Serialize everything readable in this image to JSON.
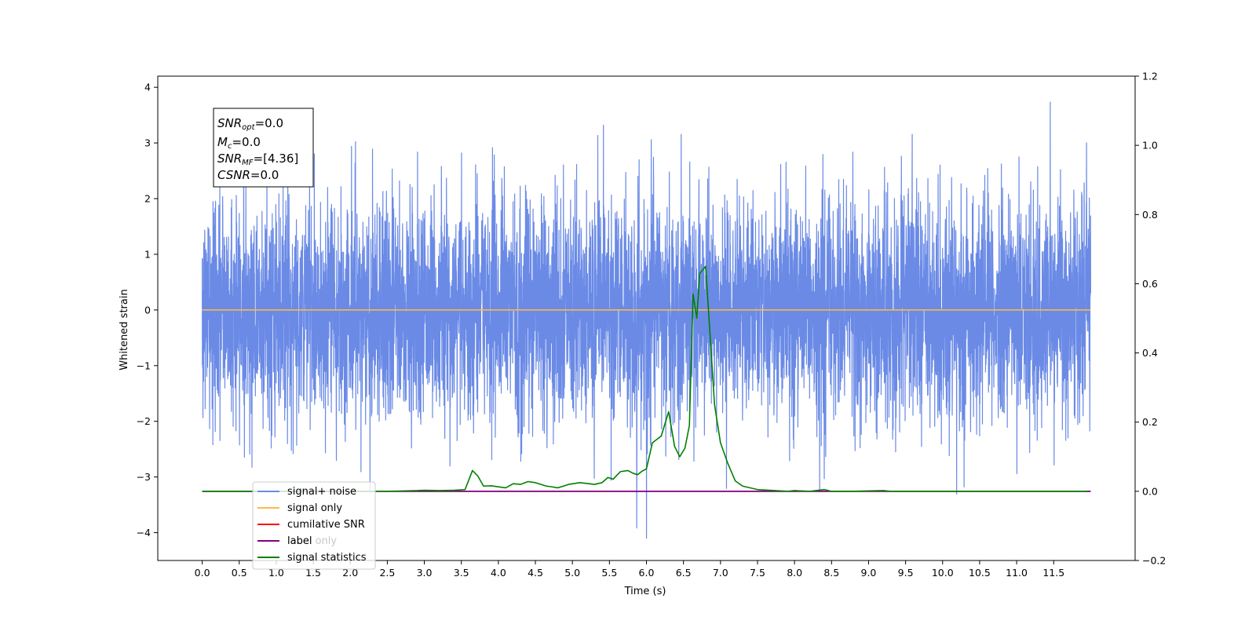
{
  "chart_data": {
    "type": "line",
    "xlabel": "Time (s)",
    "ylabel": "Whitened strain",
    "xlim": [
      -0.6,
      12.6
    ],
    "ylim_left": [
      -4.5,
      4.2
    ],
    "ylim_right": [
      -0.2,
      1.2
    ],
    "x_ticks": [
      "0.0",
      "0.5",
      "1.0",
      "1.5",
      "2.0",
      "2.5",
      "3.0",
      "3.5",
      "4.0",
      "4.5",
      "5.0",
      "5.5",
      "6.0",
      "6.5",
      "7.0",
      "7.5",
      "8.0",
      "8.5",
      "9.0",
      "9.5",
      "10.0",
      "10.5",
      "11.0",
      "11.5"
    ],
    "y_ticks_left": [
      "4",
      "3",
      "2",
      "1",
      "0",
      "−1",
      "−2",
      "−3",
      "−4"
    ],
    "y_ticks_right": [
      "1.2",
      "1.0",
      "0.8",
      "0.6",
      "0.4",
      "0.2",
      "0.0",
      "−0.2"
    ],
    "grid": false,
    "legend_placement": "lower-left",
    "info_box": {
      "lines": [
        {
          "main": "SNR",
          "sub": "opt",
          "rest": "=0.0"
        },
        {
          "main": "M",
          "sub": "c",
          "rest": "=0.0"
        },
        {
          "main": "SNR",
          "sub": "MF",
          "rest": "=[4.36]"
        },
        {
          "main": "CSNR",
          "sub": "",
          "rest": "=0.0"
        }
      ]
    },
    "series": [
      {
        "name": "signal+ noise",
        "color": "#6a8ae6",
        "axis": "left",
        "kind": "noise",
        "x_range": [
          0,
          12
        ],
        "amplitude_std": 1.0
      },
      {
        "name": "signal only",
        "color": "#ffb74d",
        "axis": "left",
        "x": [
          0,
          12
        ],
        "y": [
          0,
          0
        ]
      },
      {
        "name": "cumilative SNR",
        "color": "#ff0000",
        "axis": "right",
        "x": [
          0,
          12
        ],
        "y": [
          0,
          0
        ]
      },
      {
        "name": "label",
        "color": "#800080",
        "axis": "right",
        "x": [
          0,
          12
        ],
        "y": [
          0,
          0
        ]
      },
      {
        "name": "label only",
        "color": "#800080",
        "axis": "right",
        "x": [
          0,
          12
        ],
        "y": [
          0,
          0
        ]
      },
      {
        "name": "signal statistics",
        "color": "#008000",
        "axis": "right",
        "x": [
          0.0,
          0.5,
          1.0,
          1.5,
          2.0,
          2.5,
          2.9,
          3.0,
          3.2,
          3.4,
          3.55,
          3.65,
          3.72,
          3.8,
          3.9,
          4.1,
          4.2,
          4.3,
          4.4,
          4.5,
          4.65,
          4.72,
          4.8,
          4.88,
          4.95,
          5.1,
          5.3,
          5.4,
          5.48,
          5.55,
          5.65,
          5.75,
          5.82,
          5.88,
          5.94,
          6.0,
          6.08,
          6.2,
          6.3,
          6.38,
          6.45,
          6.52,
          6.58,
          6.63,
          6.68,
          6.72,
          6.8,
          6.92,
          7.0,
          7.1,
          7.2,
          7.3,
          7.5,
          7.9,
          8.0,
          8.2,
          8.4,
          8.5,
          8.6,
          8.8,
          9.2,
          9.3,
          9.6,
          10.0,
          10.4,
          11.0,
          11.95
        ],
        "y": [
          0.0,
          0.0,
          0.0,
          0.0,
          0.0,
          0.0,
          0.002,
          0.003,
          0.002,
          0.003,
          0.005,
          0.06,
          0.045,
          0.015,
          0.016,
          0.01,
          0.022,
          0.02,
          0.028,
          0.025,
          0.015,
          0.013,
          0.01,
          0.015,
          0.02,
          0.025,
          0.02,
          0.025,
          0.04,
          0.035,
          0.057,
          0.06,
          0.052,
          0.048,
          0.058,
          0.065,
          0.14,
          0.16,
          0.23,
          0.13,
          0.1,
          0.125,
          0.19,
          0.57,
          0.5,
          0.63,
          0.65,
          0.25,
          0.14,
          0.08,
          0.03,
          0.015,
          0.005,
          0.0,
          0.002,
          0.0,
          0.005,
          0.0,
          0.0,
          0.0,
          0.002,
          0.0,
          0.0,
          0.0,
          0.0,
          0.0,
          0.0
        ]
      }
    ]
  }
}
